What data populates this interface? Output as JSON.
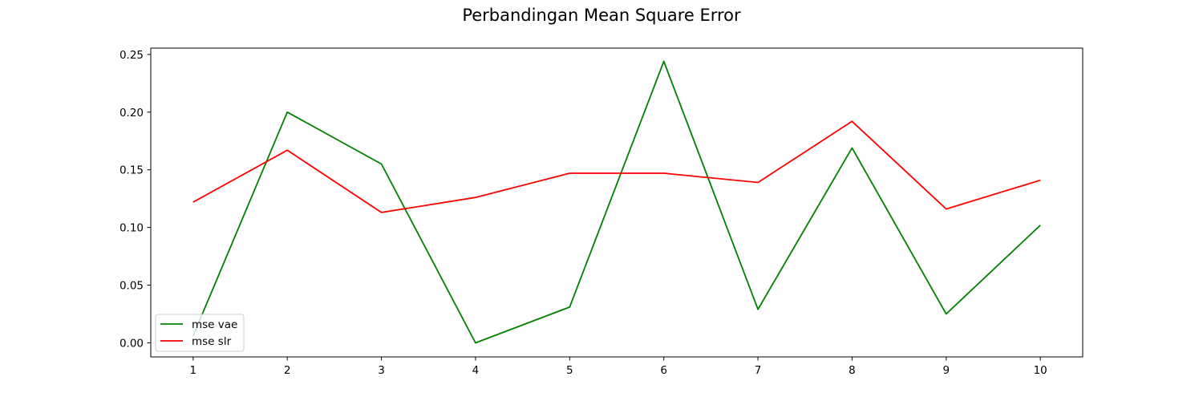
{
  "chart_data": {
    "type": "line",
    "title": "Perbandingan Mean Square Error",
    "xlabel": "",
    "ylabel": "",
    "x": [
      1,
      2,
      3,
      4,
      5,
      6,
      7,
      8,
      9,
      10
    ],
    "x_ticks": [
      "1",
      "2",
      "3",
      "4",
      "5",
      "6",
      "7",
      "8",
      "9",
      "10"
    ],
    "y_ticks": [
      "0.00",
      "0.05",
      "0.10",
      "0.15",
      "0.20",
      "0.25"
    ],
    "y_tick_values": [
      0.0,
      0.05,
      0.1,
      0.15,
      0.2,
      0.25
    ],
    "xlim": [
      0.55,
      10.45
    ],
    "ylim": [
      -0.0122,
      0.2555
    ],
    "grid": false,
    "legend_position": "lower-left",
    "series": [
      {
        "name": "mse vae",
        "color": "#008000",
        "values": [
          0.006,
          0.2,
          0.155,
          0.0,
          0.031,
          0.244,
          0.029,
          0.169,
          0.025,
          0.102
        ]
      },
      {
        "name": "mse slr",
        "color": "#ff0000",
        "values": [
          0.122,
          0.167,
          0.113,
          0.126,
          0.147,
          0.147,
          0.139,
          0.192,
          0.116,
          0.141
        ]
      }
    ]
  }
}
